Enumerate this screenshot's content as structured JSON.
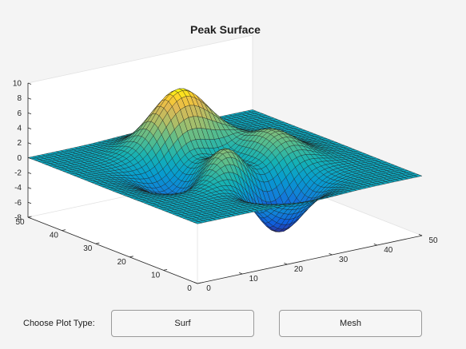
{
  "figure": {
    "title": "Peak Surface"
  },
  "chart_data": {
    "type": "surface",
    "function": "peaks",
    "grid_size": 49,
    "title": "Peak Surface",
    "xlabel": "",
    "ylabel": "",
    "zlabel": "",
    "x_range": [
      0,
      50
    ],
    "y_range": [
      0,
      50
    ],
    "z_range": [
      -8,
      10
    ],
    "x_ticks": [
      "0",
      "10",
      "20",
      "30",
      "40",
      "50"
    ],
    "y_ticks": [
      "0",
      "10",
      "20",
      "30",
      "40",
      "50"
    ],
    "z_ticks": [
      "-8",
      "-6",
      "-4",
      "-2",
      "0",
      "2",
      "4",
      "6",
      "8",
      "10"
    ],
    "colormap": "parula",
    "grid": false,
    "box": "back planes"
  },
  "controls": {
    "choose_label": "Choose Plot Type:",
    "surf_label": "Surf",
    "mesh_label": "Mesh"
  },
  "colors": {
    "background": "#f4f4f4",
    "axes_plane": "#ffffff",
    "edge": "#1a1a1a",
    "axis_line": "#262626"
  }
}
